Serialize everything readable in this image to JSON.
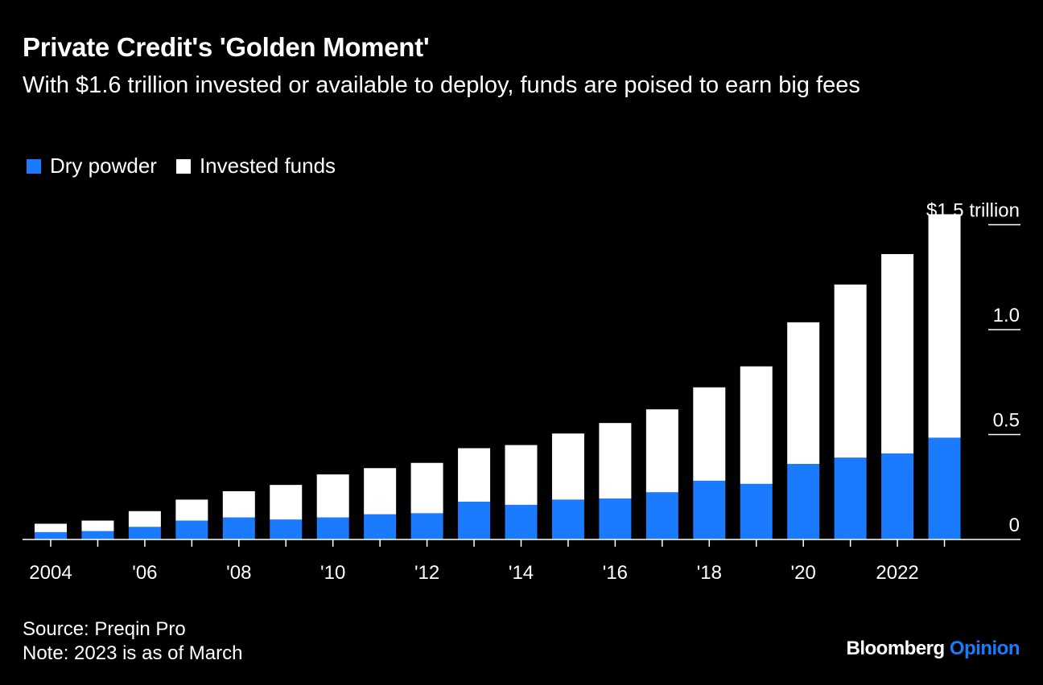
{
  "header": {
    "title": "Private Credit's 'Golden Moment'",
    "subtitle": "With $1.6 trillion invested or available to deploy, funds are poised to earn big fees"
  },
  "legend": {
    "dry_powder": "Dry powder",
    "invested": "Invested funds"
  },
  "footer": {
    "source": "Source: Preqin Pro",
    "note": "Note: 2023 is as of March"
  },
  "brand": {
    "name": "Bloomberg",
    "section": "Opinion"
  },
  "colors": {
    "background": "#000000",
    "dry_powder": "#1a7bff",
    "invested": "#ffffff",
    "axis": "#ffffff"
  },
  "chart_data": {
    "type": "bar",
    "stacked": true,
    "categories": [
      "2004",
      "2005",
      "2006",
      "2007",
      "2008",
      "2009",
      "2010",
      "2011",
      "2012",
      "2013",
      "2014",
      "2015",
      "2016",
      "2017",
      "2018",
      "2019",
      "2020",
      "2021",
      "2022",
      "2023"
    ],
    "x_tick_labels": [
      "2004",
      "",
      "'06",
      "",
      "'08",
      "",
      "'10",
      "",
      "'12",
      "",
      "'14",
      "",
      "'16",
      "",
      "'18",
      "",
      "'20",
      "",
      "2022",
      ""
    ],
    "series": [
      {
        "name": "Dry powder",
        "values": [
          0.035,
          0.04,
          0.06,
          0.09,
          0.105,
          0.095,
          0.105,
          0.12,
          0.125,
          0.18,
          0.165,
          0.19,
          0.195,
          0.225,
          0.28,
          0.265,
          0.36,
          0.39,
          0.41,
          0.485
        ]
      },
      {
        "name": "Invested funds",
        "values": [
          0.04,
          0.05,
          0.075,
          0.1,
          0.125,
          0.165,
          0.205,
          0.22,
          0.24,
          0.255,
          0.285,
          0.315,
          0.36,
          0.395,
          0.445,
          0.56,
          0.675,
          0.825,
          0.95,
          1.065
        ]
      }
    ],
    "ylim": [
      0,
      1.5
    ],
    "y_ticks": [
      {
        "value": 1.5,
        "label": "$1.5 trillion"
      },
      {
        "value": 1.0,
        "label": "1.0"
      },
      {
        "value": 0.5,
        "label": "0.5"
      },
      {
        "value": 0,
        "label": "0"
      }
    ],
    "legend_position": "top-left",
    "y_axis_side": "right",
    "grid": false
  }
}
